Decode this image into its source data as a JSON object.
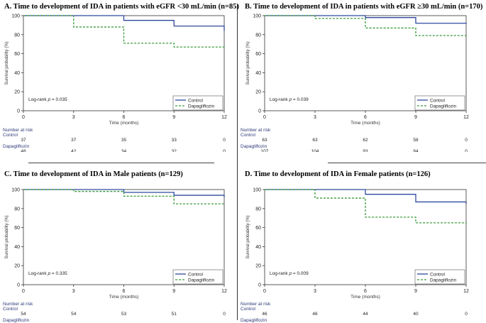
{
  "common": {
    "ylabel": "Survival probability (%)",
    "xlabel": "Time (months)",
    "risk_heading": "Number at risk",
    "groups": [
      "Control",
      "Dapagliflozin"
    ],
    "colors": {
      "Control": "#2e4a9e",
      "Dapagliflozin": "#3a9a3a",
      "risk_text": "#2e3a7a"
    }
  },
  "chart_data": [
    {
      "type": "line",
      "panel": "A",
      "title": "A. Time to development  of  IDA in patients with eGFR <30 mL/min (n=85)",
      "xlabel": "Time (months)",
      "ylabel": "Survival probability (%)",
      "x_ticks": [
        0,
        3,
        6,
        9,
        12
      ],
      "y_ticks": [
        0,
        20,
        40,
        60,
        80,
        100
      ],
      "xlim": [
        0,
        12
      ],
      "ylim": [
        0,
        100
      ],
      "step": true,
      "series": [
        {
          "name": "Control",
          "style": "solid",
          "x": [
            0,
            6,
            9,
            12
          ],
          "y": [
            100,
            95,
            89,
            84
          ]
        },
        {
          "name": "Dapagliflozin",
          "style": "dashed",
          "x": [
            0,
            3,
            6,
            9,
            12
          ],
          "y": [
            100,
            88,
            71,
            67,
            66
          ]
        }
      ],
      "annotation": {
        "prefix": "Log-rank",
        "p_label": "p",
        "p_value": "= 0.035"
      },
      "legend_position": "bottom-right",
      "risk_table": {
        "Control": [
          "37",
          "37",
          "35",
          "33",
          "0"
        ],
        "Dapagliflozin": [
          "48",
          "42",
          "34",
          "32",
          "0"
        ]
      }
    },
    {
      "type": "line",
      "panel": "B",
      "title": "B. Time to development  of  IDA in patients with eGFR ≥30 mL/min (n=170)",
      "xlabel": "Time (months)",
      "ylabel": "Survival probability (%)",
      "x_ticks": [
        0,
        3,
        6,
        9,
        12
      ],
      "y_ticks": [
        0,
        20,
        40,
        60,
        80,
        100
      ],
      "xlim": [
        0,
        12
      ],
      "ylim": [
        0,
        100
      ],
      "step": true,
      "series": [
        {
          "name": "Control",
          "style": "solid",
          "x": [
            0,
            6,
            9,
            12
          ],
          "y": [
            100,
            98,
            92,
            91
          ]
        },
        {
          "name": "Dapagliflozin",
          "style": "dashed",
          "x": [
            0,
            3,
            6,
            9,
            12
          ],
          "y": [
            100,
            97,
            87,
            79,
            79
          ]
        }
      ],
      "annotation": {
        "prefix": "Log-rank",
        "p_label": "p",
        "p_value": "= 0.039"
      },
      "legend_position": "bottom-right",
      "risk_table": {
        "Control": [
          "63",
          "63",
          "62",
          "58",
          "0"
        ],
        "Dapagliflozin": [
          "107",
          "104",
          "93",
          "84",
          "0"
        ]
      }
    },
    {
      "type": "line",
      "panel": "C",
      "title": "C. Time to development  of  IDA in Male patients  (n=129)",
      "xlabel": "Time (months)",
      "ylabel": "Survival probability (%)",
      "x_ticks": [
        0,
        3,
        6,
        9,
        12
      ],
      "y_ticks": [
        0,
        20,
        40,
        60,
        80,
        100
      ],
      "xlim": [
        0,
        12
      ],
      "ylim": [
        0,
        100
      ],
      "step": true,
      "series": [
        {
          "name": "Control",
          "style": "solid",
          "x": [
            0,
            6,
            9,
            12
          ],
          "y": [
            100,
            97,
            94,
            92
          ]
        },
        {
          "name": "Dapagliflozin",
          "style": "dashed",
          "x": [
            0,
            3,
            6,
            9,
            12
          ],
          "y": [
            100,
            98,
            93,
            85,
            85
          ]
        }
      ],
      "annotation": {
        "prefix": "Log-rank",
        "p_label": "p",
        "p_value": "= 0.335"
      },
      "legend_position": "bottom-right",
      "risk_table": {
        "Control": [
          "54",
          "54",
          "53",
          "51",
          "0"
        ],
        "Dapagliflozin": [
          "75",
          "73",
          "70",
          "64",
          "0"
        ]
      }
    },
    {
      "type": "line",
      "panel": "D",
      "title": "D. Time to development  of  IDA in Female patients  (n=126)",
      "xlabel": "Time (months)",
      "ylabel": "Survival probability (%)",
      "x_ticks": [
        0,
        3,
        6,
        9,
        12
      ],
      "y_ticks": [
        0,
        20,
        40,
        60,
        80,
        100
      ],
      "xlim": [
        0,
        12
      ],
      "ylim": [
        0,
        100
      ],
      "step": true,
      "series": [
        {
          "name": "Control",
          "style": "solid",
          "x": [
            0,
            6,
            9,
            12
          ],
          "y": [
            100,
            95,
            87,
            85
          ]
        },
        {
          "name": "Dapagliflozin",
          "style": "dashed",
          "x": [
            0,
            3,
            6,
            9,
            12
          ],
          "y": [
            100,
            91,
            71,
            65,
            63
          ]
        }
      ],
      "annotation": {
        "prefix": "Log-rank",
        "p_label": "p",
        "p_value": "= 0.009"
      },
      "legend_position": "bottom-right",
      "risk_table": {
        "Control": [
          "46",
          "46",
          "44",
          "40",
          "0"
        ],
        "Dapagliflozin": [
          "80",
          "73",
          "57",
          "52",
          "0"
        ]
      }
    }
  ]
}
